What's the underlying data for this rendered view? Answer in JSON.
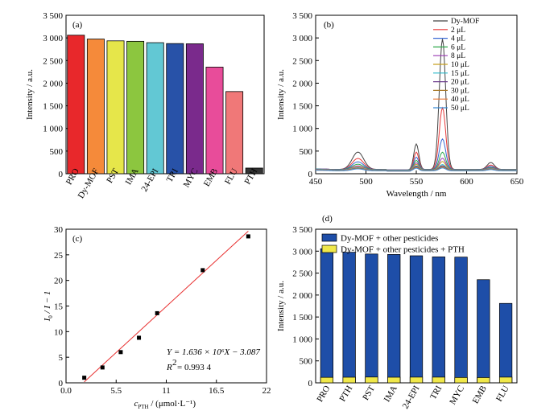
{
  "chart_data": [
    {
      "panel": "(a)",
      "type": "bar",
      "ylabel": "Intensity / a.u.",
      "ylim": [
        0,
        3500
      ],
      "yticks": [
        "0",
        "500",
        "1 000",
        "1 500",
        "2 000",
        "2 500",
        "3 000",
        "3 500"
      ],
      "categories": [
        "PRO",
        "Dy-MOF",
        "PST",
        "IMA",
        "24-EPI",
        "TRI",
        "MYC",
        "EMB",
        "FLU",
        "PTH"
      ],
      "values": [
        3060,
        2975,
        2935,
        2925,
        2895,
        2875,
        2870,
        2355,
        1815,
        125
      ],
      "colors": [
        "#e8282b",
        "#f58a3a",
        "#e6e64a",
        "#8cc63f",
        "#62c8d4",
        "#2852a8",
        "#7a2a8c",
        "#e84c9a",
        "#f07878",
        "#333333"
      ]
    },
    {
      "panel": "(b)",
      "type": "line",
      "xlabel": "Wavelength / nm",
      "ylabel": "Intensity / a.u.",
      "xlim": [
        450,
        650
      ],
      "ylim": [
        0,
        3500
      ],
      "xticks": [
        "450",
        "500",
        "550",
        "600",
        "650"
      ],
      "yticks": [
        "0",
        "500",
        "1 000",
        "1 500",
        "2 000",
        "2 500",
        "3 000",
        "3 500"
      ],
      "series": [
        {
          "name": "Dy-MOF",
          "color": "#444444",
          "peaks": [
            430,
            610,
            2930,
            200
          ],
          "base": 95
        },
        {
          "name": "2 μL",
          "color": "#e83a3a",
          "peaks": [
            290,
            430,
            1410,
            145
          ],
          "base": 95
        },
        {
          "name": "4 μL",
          "color": "#3a6ad4",
          "peaks": [
            215,
            320,
            720,
            115
          ],
          "base": 95
        },
        {
          "name": "6 μL",
          "color": "#2ea84a",
          "peaks": [
            165,
            250,
            430,
            95
          ],
          "base": 90
        },
        {
          "name": "8 μL",
          "color": "#9a3ab4",
          "peaks": [
            130,
            200,
            300,
            85
          ],
          "base": 85
        },
        {
          "name": "10 μL",
          "color": "#c8a020",
          "peaks": [
            110,
            170,
            230,
            78
          ],
          "base": 80
        },
        {
          "name": "15 μL",
          "color": "#2ab8c8",
          "peaks": [
            95,
            140,
            165,
            72
          ],
          "base": 75
        },
        {
          "name": "20 μL",
          "color": "#6a3a8c",
          "peaks": [
            88,
            125,
            140,
            68
          ],
          "base": 72
        },
        {
          "name": "30 μL",
          "color": "#a87a2a",
          "peaks": [
            82,
            110,
            120,
            64
          ],
          "base": 70
        },
        {
          "name": "40 μL",
          "color": "#e87a3a",
          "peaks": [
            78,
            100,
            105,
            60
          ],
          "base": 68
        },
        {
          "name": "50 μL",
          "color": "#3a8ad4",
          "peaks": [
            74,
            92,
            95,
            58
          ],
          "base": 66
        }
      ]
    },
    {
      "panel": "(c)",
      "type": "scatter",
      "xlabel_main": "c",
      "xlabel_sub": "PTH",
      "xlabel_unit": " / (μmol·L⁻¹)",
      "ylabel_main": "I",
      "ylabel_sub": "0",
      "ylabel_rest": " / I − 1",
      "xlim": [
        0,
        22
      ],
      "ylim": [
        0,
        30
      ],
      "xticks": [
        "0.0",
        "5.5",
        "11",
        "16.5",
        "22"
      ],
      "yticks": [
        "0",
        "5",
        "10",
        "15",
        "20",
        "25",
        "30"
      ],
      "points": [
        [
          2,
          1.0
        ],
        [
          4,
          3.0
        ],
        [
          6,
          6.0
        ],
        [
          8,
          8.8
        ],
        [
          10,
          13.6
        ],
        [
          15,
          22.0
        ],
        [
          20,
          28.6
        ]
      ],
      "fit": {
        "slope": 1.636,
        "intercept": -3.087,
        "x_range": [
          2,
          20
        ],
        "color": "#e83030"
      },
      "equation": "Y = 1.636 × 10⁶X − 3.087",
      "r2_label": "R",
      "r2_value": "= 0.993 4"
    },
    {
      "panel": "(d)",
      "type": "bar",
      "ylabel": "Intensity / a.u.",
      "ylim": [
        0,
        3500
      ],
      "yticks": [
        "0",
        "500",
        "1 000",
        "1 500",
        "2 000",
        "2 500",
        "3 000",
        "3 500"
      ],
      "categories": [
        "PRO",
        "PTH",
        "PST",
        "IMA",
        "24-EPI",
        "TRI",
        "MYC",
        "EMB",
        "FLU"
      ],
      "series": [
        {
          "name": "Dy-MOF + other pesticides",
          "color": "#1e4ea8",
          "values": [
            3055,
            2975,
            2935,
            2925,
            2895,
            2870,
            2865,
            2350,
            1810
          ]
        },
        {
          "name": "Dy-MOF + other pesticides + PTH",
          "color": "#f0e84a",
          "values": [
            125,
            128,
            132,
            128,
            130,
            130,
            122,
            120,
            130
          ]
        }
      ]
    }
  ]
}
